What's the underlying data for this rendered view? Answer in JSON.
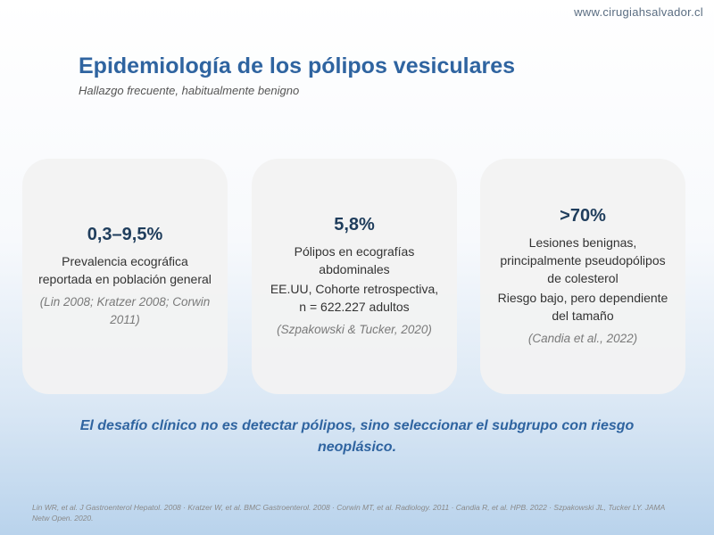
{
  "header": {
    "url": "www.cirugiahsalvador.cl",
    "title": "Epidemiología de los pólipos vesiculares",
    "subtitle": "Hallazgo frecuente, habitualmente benigno"
  },
  "cards": [
    {
      "stat": "0,3–9,5%",
      "lines": [
        "Prevalencia ecográfica reportada en población general"
      ],
      "citation": "(Lin 2008; Kratzer 2008; Corwin 2011)"
    },
    {
      "stat": "5,8%",
      "lines": [
        "Pólipos en ecografías abdominales",
        "EE.UU,  Cohorte retrospectiva, n = 622.227 adultos"
      ],
      "citation": "(Szpakowski & Tucker, 2020)"
    },
    {
      "stat": ">70%",
      "lines": [
        "Lesiones benignas, principalmente pseudopólipos de colesterol",
        "Riesgo bajo, pero dependiente del tamaño"
      ],
      "citation": "(Candia et al., 2022)"
    }
  ],
  "message": "El desafío clínico no es detectar pólipos, sino seleccionar el subgrupo con riesgo neoplásico.",
  "references": "Lin WR, et al. J Gastroenterol Hepatol. 2008  ·  Kratzer W, et al. BMC Gastroenterol. 2008  ·  Corwin MT, et al. Radiology. 2011  ·  Candia R, et al. HPB. 2022  ·  Szpakowski JL, Tucker LY. JAMA Netw Open. 2020."
}
